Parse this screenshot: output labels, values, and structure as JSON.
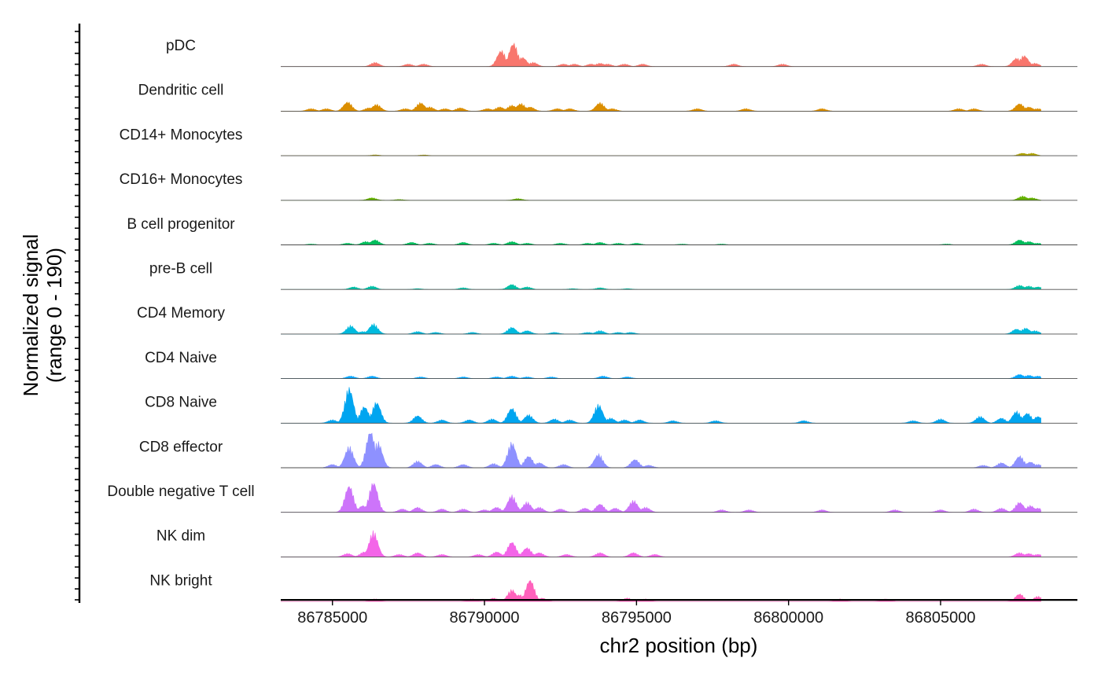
{
  "chart_data": {
    "type": "area",
    "chart_kind": "coverage-track-plot",
    "title": "",
    "xlabel": "chr2 position (bp)",
    "ylabel_line1": "Normalized signal",
    "ylabel_line2": "(range 0 - 190)",
    "y_range": [
      0,
      190
    ],
    "xlim": [
      86783300,
      86809500
    ],
    "x_ticks": [
      86785000,
      86790000,
      86795000,
      86800000,
      86805000
    ],
    "x_tick_labels": [
      "86785000",
      "86790000",
      "86795000",
      "86800000",
      "86805000"
    ],
    "signal_x_extent": [
      86783300,
      86808300
    ],
    "grid": false,
    "legend": "none",
    "series": [
      {
        "name": "pDC",
        "color": "#F8766D",
        "peaks": [
          [
            86786400,
            5
          ],
          [
            86787500,
            3
          ],
          [
            86788000,
            3
          ],
          [
            86790550,
            19
          ],
          [
            86790950,
            28
          ],
          [
            86791250,
            11
          ],
          [
            86791600,
            5
          ],
          [
            86792600,
            3
          ],
          [
            86792950,
            3
          ],
          [
            86793500,
            3
          ],
          [
            86793800,
            4
          ],
          [
            86794050,
            3
          ],
          [
            86794600,
            3
          ],
          [
            86795200,
            3
          ],
          [
            86798200,
            3
          ],
          [
            86799800,
            3
          ],
          [
            86806350,
            3
          ],
          [
            86807500,
            10
          ],
          [
            86807750,
            13
          ],
          [
            86808100,
            4
          ]
        ]
      },
      {
        "name": "Dendritic cell",
        "color": "#DB8E00",
        "peaks": [
          [
            86784300,
            3
          ],
          [
            86784800,
            3
          ],
          [
            86785500,
            11
          ],
          [
            86786200,
            4
          ],
          [
            86786450,
            8
          ],
          [
            86787400,
            3
          ],
          [
            86787900,
            10
          ],
          [
            86788200,
            5
          ],
          [
            86788700,
            3
          ],
          [
            86789200,
            4
          ],
          [
            86790100,
            3
          ],
          [
            86790500,
            5
          ],
          [
            86790900,
            7
          ],
          [
            86791200,
            9
          ],
          [
            86791500,
            5
          ],
          [
            86792400,
            3
          ],
          [
            86792800,
            3
          ],
          [
            86793800,
            10
          ],
          [
            86794200,
            3
          ],
          [
            86797000,
            3
          ],
          [
            86798600,
            3
          ],
          [
            86801100,
            3
          ],
          [
            86805600,
            3
          ],
          [
            86806100,
            3
          ],
          [
            86807600,
            9
          ],
          [
            86807900,
            5
          ],
          [
            86808200,
            3
          ]
        ]
      },
      {
        "name": "CD14+ Monocytes",
        "color": "#AEA200",
        "peaks": [
          [
            86786400,
            1
          ],
          [
            86788000,
            1
          ],
          [
            86807700,
            3
          ],
          [
            86808000,
            3
          ]
        ]
      },
      {
        "name": "CD16+ Monocytes",
        "color": "#64B200",
        "peaks": [
          [
            86786300,
            3
          ],
          [
            86787200,
            1
          ],
          [
            86791100,
            2
          ],
          [
            86807700,
            5
          ],
          [
            86808000,
            3
          ]
        ]
      },
      {
        "name": "B cell progenitor",
        "color": "#00BD5C",
        "peaks": [
          [
            86784300,
            1
          ],
          [
            86785500,
            2
          ],
          [
            86786100,
            4
          ],
          [
            86786400,
            6
          ],
          [
            86787600,
            3
          ],
          [
            86788200,
            2
          ],
          [
            86789300,
            3
          ],
          [
            86790300,
            2
          ],
          [
            86790900,
            4
          ],
          [
            86791400,
            2
          ],
          [
            86792500,
            2
          ],
          [
            86793400,
            2
          ],
          [
            86793800,
            3
          ],
          [
            86794400,
            2
          ],
          [
            86795000,
            2
          ],
          [
            86796500,
            1
          ],
          [
            86797800,
            1
          ],
          [
            86805200,
            1
          ],
          [
            86807600,
            6
          ],
          [
            86807900,
            4
          ],
          [
            86808200,
            2
          ]
        ]
      },
      {
        "name": "pre-B cell",
        "color": "#00C1A7",
        "peaks": [
          [
            86785700,
            3
          ],
          [
            86786300,
            4
          ],
          [
            86787800,
            1
          ],
          [
            86789300,
            2
          ],
          [
            86790900,
            6
          ],
          [
            86791400,
            3
          ],
          [
            86792900,
            1
          ],
          [
            86793800,
            2
          ],
          [
            86794700,
            1
          ],
          [
            86807600,
            5
          ],
          [
            86807900,
            4
          ],
          [
            86808200,
            3
          ]
        ]
      },
      {
        "name": "CD4 Memory",
        "color": "#00BADE",
        "peaks": [
          [
            86785600,
            10
          ],
          [
            86786000,
            3
          ],
          [
            86786350,
            12
          ],
          [
            86787800,
            3
          ],
          [
            86788400,
            2
          ],
          [
            86789600,
            2
          ],
          [
            86790900,
            8
          ],
          [
            86791400,
            4
          ],
          [
            86792300,
            2
          ],
          [
            86793400,
            2
          ],
          [
            86793800,
            4
          ],
          [
            86794400,
            2
          ],
          [
            86794800,
            2
          ],
          [
            86807500,
            6
          ],
          [
            86807800,
            7
          ],
          [
            86808100,
            4
          ]
        ]
      },
      {
        "name": "CD4 Naive",
        "color": "#00A6FF",
        "peaks": [
          [
            86785600,
            3
          ],
          [
            86786300,
            3
          ],
          [
            86787900,
            2
          ],
          [
            86789300,
            2
          ],
          [
            86790400,
            2
          ],
          [
            86790900,
            3
          ],
          [
            86791400,
            2
          ],
          [
            86792200,
            2
          ],
          [
            86793900,
            3
          ],
          [
            86794700,
            2
          ],
          [
            86807600,
            5
          ],
          [
            86807900,
            4
          ],
          [
            86808200,
            3
          ]
        ]
      },
      {
        "name": "CD8 Naive",
        "color": "#00A5F0",
        "peaks": [
          [
            86785000,
            4
          ],
          [
            86785550,
            42
          ],
          [
            86786050,
            20
          ],
          [
            86786450,
            25
          ],
          [
            86787800,
            9
          ],
          [
            86788600,
            4
          ],
          [
            86789500,
            4
          ],
          [
            86790250,
            5
          ],
          [
            86790900,
            18
          ],
          [
            86791450,
            10
          ],
          [
            86792300,
            5
          ],
          [
            86792800,
            4
          ],
          [
            86793750,
            22
          ],
          [
            86794150,
            6
          ],
          [
            86794600,
            4
          ],
          [
            86795100,
            4
          ],
          [
            86796200,
            3
          ],
          [
            86797600,
            3
          ],
          [
            86800500,
            3
          ],
          [
            86804100,
            3
          ],
          [
            86805000,
            5
          ],
          [
            86806300,
            8
          ],
          [
            86807000,
            6
          ],
          [
            86807500,
            14
          ],
          [
            86807850,
            12
          ],
          [
            86808200,
            8
          ]
        ]
      },
      {
        "name": "CD8 effector",
        "color": "#8E91FF",
        "peaks": [
          [
            86785000,
            4
          ],
          [
            86785550,
            25
          ],
          [
            86786250,
            44
          ],
          [
            86786500,
            30
          ],
          [
            86787800,
            8
          ],
          [
            86788400,
            4
          ],
          [
            86789300,
            4
          ],
          [
            86790300,
            5
          ],
          [
            86790900,
            30
          ],
          [
            86791450,
            14
          ],
          [
            86791800,
            6
          ],
          [
            86792600,
            4
          ],
          [
            86793750,
            16
          ],
          [
            86794950,
            10
          ],
          [
            86795400,
            3
          ],
          [
            86806400,
            3
          ],
          [
            86807000,
            6
          ],
          [
            86807600,
            14
          ],
          [
            86807950,
            7
          ],
          [
            86808200,
            4
          ]
        ]
      },
      {
        "name": "Double negative T cell",
        "color": "#CD74FA",
        "peaks": [
          [
            86785550,
            32
          ],
          [
            86786000,
            8
          ],
          [
            86786350,
            36
          ],
          [
            86787300,
            4
          ],
          [
            86787800,
            6
          ],
          [
            86788600,
            4
          ],
          [
            86789300,
            4
          ],
          [
            86790000,
            3
          ],
          [
            86790400,
            6
          ],
          [
            86790900,
            20
          ],
          [
            86791400,
            12
          ],
          [
            86791800,
            6
          ],
          [
            86792500,
            4
          ],
          [
            86793300,
            5
          ],
          [
            86793800,
            10
          ],
          [
            86794300,
            5
          ],
          [
            86794900,
            14
          ],
          [
            86795300,
            6
          ],
          [
            86797800,
            3
          ],
          [
            86798700,
            3
          ],
          [
            86801100,
            3
          ],
          [
            86803500,
            3
          ],
          [
            86805000,
            3
          ],
          [
            86806100,
            4
          ],
          [
            86807000,
            5
          ],
          [
            86807600,
            12
          ],
          [
            86807950,
            8
          ],
          [
            86808200,
            5
          ]
        ]
      },
      {
        "name": "NK dim",
        "color": "#F365E8",
        "peaks": [
          [
            86785500,
            4
          ],
          [
            86786050,
            6
          ],
          [
            86786350,
            30
          ],
          [
            86787200,
            3
          ],
          [
            86787800,
            5
          ],
          [
            86788600,
            3
          ],
          [
            86789800,
            3
          ],
          [
            86790400,
            6
          ],
          [
            86790900,
            18
          ],
          [
            86791400,
            11
          ],
          [
            86791800,
            5
          ],
          [
            86792700,
            3
          ],
          [
            86793800,
            5
          ],
          [
            86794900,
            5
          ],
          [
            86795600,
            3
          ],
          [
            86807600,
            5
          ],
          [
            86807900,
            4
          ],
          [
            86808200,
            3
          ]
        ]
      },
      {
        "name": "NK bright",
        "color": "#FF62BC",
        "peaks": [
          [
            86786400,
            3
          ],
          [
            86789600,
            3
          ],
          [
            86790300,
            4
          ],
          [
            86790900,
            14
          ],
          [
            86791150,
            8
          ],
          [
            86791500,
            26
          ],
          [
            86791900,
            4
          ],
          [
            86794700,
            4
          ],
          [
            86795300,
            3
          ],
          [
            86801700,
            3
          ],
          [
            86803200,
            3
          ],
          [
            86807600,
            9
          ],
          [
            86808200,
            6
          ]
        ]
      }
    ]
  }
}
